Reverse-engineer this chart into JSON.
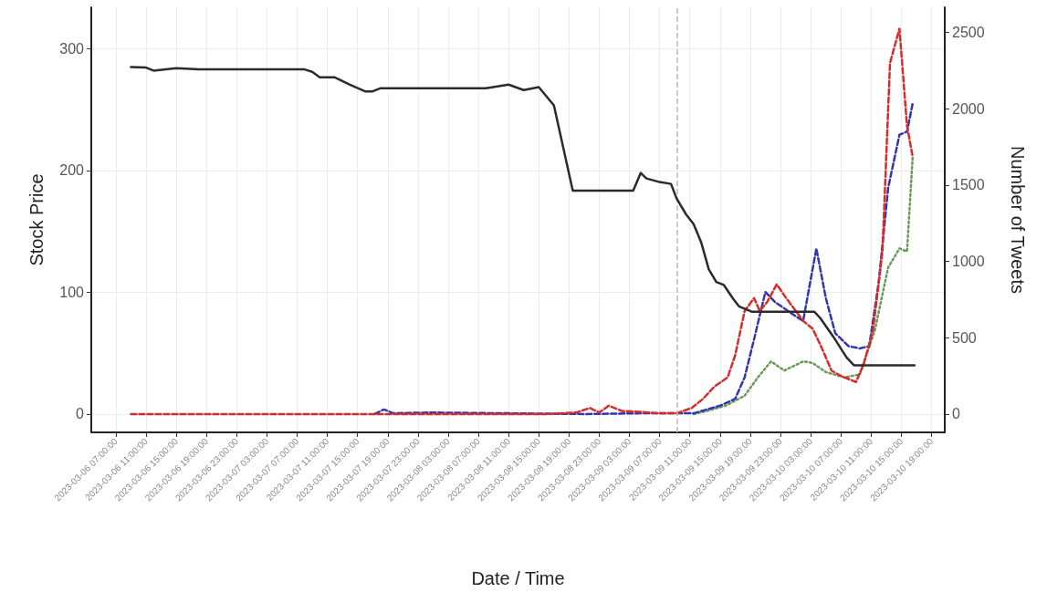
{
  "chart_data": {
    "type": "line",
    "xlabel": "Date / Time",
    "ylabel": "Stock Price",
    "y2label": "Number of Tweets",
    "xlim": [
      "2023-03-06T03:45",
      "2023-03-10T20:45"
    ],
    "ylim": [
      -15,
      334
    ],
    "y2lim": [
      -120,
      2665
    ],
    "yticks": [
      0,
      100,
      200,
      300
    ],
    "y2ticks": [
      0,
      500,
      1000,
      1500,
      2000,
      2500
    ],
    "xticks": [
      {
        "value": "2023-03-06T07:00",
        "label": "2023-03-06 07:00:00"
      },
      {
        "value": "2023-03-06T11:00",
        "label": "2023-03-06 11:00:00"
      },
      {
        "value": "2023-03-06T15:00",
        "label": "2023-03-06 15:00:00"
      },
      {
        "value": "2023-03-06T19:00",
        "label": "2023-03-06 19:00:00"
      },
      {
        "value": "2023-03-06T23:00",
        "label": "2023-03-06 23:00:00"
      },
      {
        "value": "2023-03-07T03:00",
        "label": "2023-03-07 03:00:00"
      },
      {
        "value": "2023-03-07T07:00",
        "label": "2023-03-07 07:00:00"
      },
      {
        "value": "2023-03-07T11:00",
        "label": "2023-03-07 11:00:00"
      },
      {
        "value": "2023-03-07T15:00",
        "label": "2023-03-07 15:00:00"
      },
      {
        "value": "2023-03-07T19:00",
        "label": "2023-03-07 19:00:00"
      },
      {
        "value": "2023-03-07T23:00",
        "label": "2023-03-07 23:00:00"
      },
      {
        "value": "2023-03-08T03:00",
        "label": "2023-03-08 03:00:00"
      },
      {
        "value": "2023-03-08T07:00",
        "label": "2023-03-08 07:00:00"
      },
      {
        "value": "2023-03-08T11:00",
        "label": "2023-03-08 11:00:00"
      },
      {
        "value": "2023-03-08T15:00",
        "label": "2023-03-08 15:00:00"
      },
      {
        "value": "2023-03-08T19:00",
        "label": "2023-03-08 19:00:00"
      },
      {
        "value": "2023-03-08T23:00",
        "label": "2023-03-08 23:00:00"
      },
      {
        "value": "2023-03-09T03:00",
        "label": "2023-03-09 03:00:00"
      },
      {
        "value": "2023-03-09T07:00",
        "label": "2023-03-09 07:00:00"
      },
      {
        "value": "2023-03-09T11:00",
        "label": "2023-03-09 11:00:00"
      },
      {
        "value": "2023-03-09T15:00",
        "label": "2023-03-09 15:00:00"
      },
      {
        "value": "2023-03-09T19:00",
        "label": "2023-03-09 19:00:00"
      },
      {
        "value": "2023-03-09T23:00",
        "label": "2023-03-09 23:00:00"
      },
      {
        "value": "2023-03-10T03:00",
        "label": "2023-03-10 03:00:00"
      },
      {
        "value": "2023-03-10T07:00",
        "label": "2023-03-10 07:00:00"
      },
      {
        "value": "2023-03-10T11:00",
        "label": "2023-03-10 11:00:00"
      },
      {
        "value": "2023-03-10T15:00",
        "label": "2023-03-10 15:00:00"
      },
      {
        "value": "2023-03-10T19:00",
        "label": "2023-03-10 19:00:00"
      }
    ],
    "grid": true,
    "marker": "none",
    "ref_lines": [
      {
        "axis": "x",
        "value": "2023-03-09T09:15",
        "color": "#bbbbbb",
        "line_style": "dashed"
      }
    ],
    "series": [
      {
        "color": "#2b2b2b",
        "line_style": "solid",
        "x": [
          "2023-03-06T09:00",
          "2023-03-06T11:00",
          "2023-03-06T12:00",
          "2023-03-06T15:00",
          "2023-03-06T18:00",
          "2023-03-07T08:00",
          "2023-03-07T09:00",
          "2023-03-07T10:00",
          "2023-03-07T12:00",
          "2023-03-07T14:00",
          "2023-03-07T16:00",
          "2023-03-07T17:00",
          "2023-03-07T18:00",
          "2023-03-08T08:00",
          "2023-03-08T11:00",
          "2023-03-08T13:00",
          "2023-03-08T15:00",
          "2023-03-08T17:00",
          "2023-03-08T19:30",
          "2023-03-09T03:30",
          "2023-03-09T04:30",
          "2023-03-09T05:15",
          "2023-03-09T07:00",
          "2023-03-09T08:30",
          "2023-03-09T09:15",
          "2023-03-09T10:30",
          "2023-03-09T11:30",
          "2023-03-09T12:30",
          "2023-03-09T13:30",
          "2023-03-09T14:30",
          "2023-03-09T15:30",
          "2023-03-09T16:45",
          "2023-03-09T17:30",
          "2023-03-09T19:15",
          "2023-03-10T03:30",
          "2023-03-10T04:15",
          "2023-03-10T06:00",
          "2023-03-10T07:45",
          "2023-03-10T08:45",
          "2023-03-10T16:45"
        ],
        "values": [
          285,
          284.5,
          282,
          284,
          283,
          283,
          281,
          276.5,
          276.5,
          270.5,
          265,
          265,
          267.5,
          267.5,
          270.5,
          266,
          268.5,
          253.5,
          183.5,
          183.5,
          198,
          193.5,
          190.5,
          189,
          177,
          164,
          156,
          141,
          119,
          108.5,
          106,
          94.5,
          88.5,
          84,
          84,
          79,
          63.5,
          46.5,
          40,
          40
        ]
      },
      {
        "color": "#d62c2c",
        "line_style": "dashed",
        "axis": "y2",
        "x": [
          "2023-03-06T09:00",
          "2023-03-08T16:00",
          "2023-03-08T20:00",
          "2023-03-08T21:45",
          "2023-03-08T23:00",
          "2023-03-09T00:15",
          "2023-03-09T02:00",
          "2023-03-09T04:30",
          "2023-03-09T06:45",
          "2023-03-09T09:15",
          "2023-03-09T11:15",
          "2023-03-09T12:45",
          "2023-03-09T14:15",
          "2023-03-09T16:00",
          "2023-03-09T17:00",
          "2023-03-09T18:15",
          "2023-03-09T19:30",
          "2023-03-09T20:15",
          "2023-03-09T21:15",
          "2023-03-09T22:30",
          "2023-03-09T23:45",
          "2023-03-10T02:00",
          "2023-03-10T03:15",
          "2023-03-10T04:30",
          "2023-03-10T05:45",
          "2023-03-10T07:00",
          "2023-03-10T09:00",
          "2023-03-10T10:00",
          "2023-03-10T11:15",
          "2023-03-10T12:30",
          "2023-03-10T13:30",
          "2023-03-10T14:45",
          "2023-03-10T15:45",
          "2023-03-10T16:30"
        ],
        "values": [
          0,
          0,
          10,
          40,
          10,
          55,
          20,
          15,
          5,
          5,
          40,
          100,
          180,
          240,
          385,
          675,
          760,
          675,
          735,
          850,
          760,
          610,
          560,
          430,
          285,
          250,
          210,
          325,
          550,
          1065,
          2300,
          2525,
          1890,
          1685
        ]
      },
      {
        "color": "#3535b0",
        "line_style": "dashed",
        "axis": "y2",
        "x": [
          "2023-03-07T17:15",
          "2023-03-07T18:30",
          "2023-03-07T19:45",
          "2023-03-08T00:30",
          "2023-03-08T21:00",
          "2023-03-09T04:30",
          "2023-03-09T11:30",
          "2023-03-09T15:00",
          "2023-03-09T17:00",
          "2023-03-09T18:15",
          "2023-03-09T19:30",
          "2023-03-09T21:00",
          "2023-03-09T22:15",
          "2023-03-10T00:45",
          "2023-03-10T02:00",
          "2023-03-10T03:45",
          "2023-03-10T05:00",
          "2023-03-10T06:15",
          "2023-03-10T08:00",
          "2023-03-10T09:30",
          "2023-03-10T10:45",
          "2023-03-10T12:00",
          "2023-03-10T13:15",
          "2023-03-10T14:45",
          "2023-03-10T15:45",
          "2023-03-10T16:30"
        ],
        "values": [
          0,
          30,
          5,
          10,
          0,
          5,
          5,
          55,
          100,
          240,
          490,
          800,
          735,
          650,
          610,
          1085,
          760,
          530,
          445,
          430,
          445,
          860,
          1480,
          1830,
          1850,
          2035
        ]
      },
      {
        "color": "#6a9a5a",
        "line_style": "dotted",
        "axis": "y2",
        "x": [
          "2023-03-09T11:30",
          "2023-03-09T13:15",
          "2023-03-09T15:45",
          "2023-03-09T18:15",
          "2023-03-09T20:00",
          "2023-03-09T21:45",
          "2023-03-09T23:30",
          "2023-03-10T02:00",
          "2023-03-10T03:15",
          "2023-03-10T05:00",
          "2023-03-10T07:30",
          "2023-03-10T09:30",
          "2023-03-10T11:30",
          "2023-03-10T13:15",
          "2023-03-10T14:45",
          "2023-03-10T15:45",
          "2023-03-10T16:30"
        ],
        "values": [
          0,
          20,
          55,
          120,
          240,
          345,
          285,
          345,
          335,
          275,
          240,
          260,
          550,
          960,
          1085,
          1065,
          1685
        ]
      }
    ]
  }
}
